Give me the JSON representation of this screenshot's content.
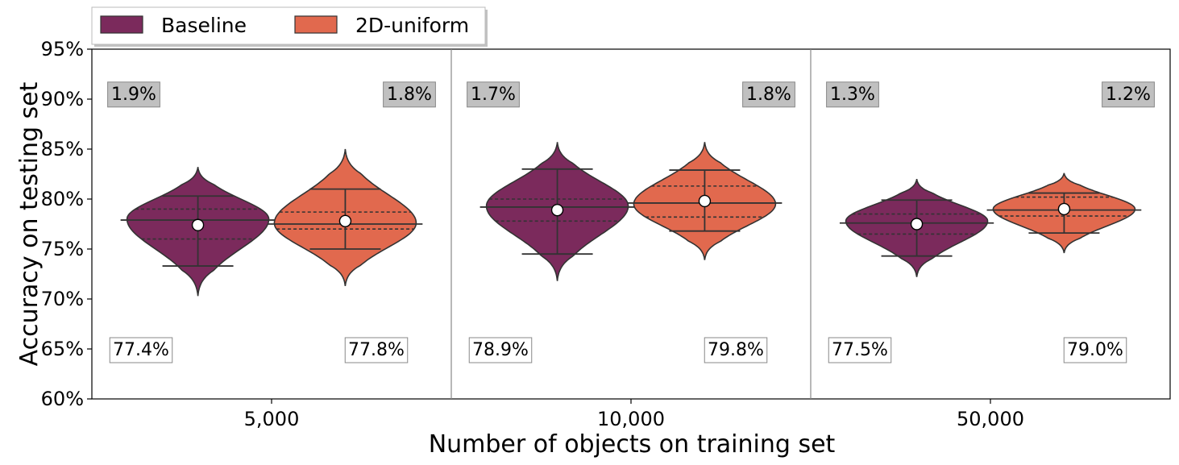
{
  "chart_data": {
    "type": "violin",
    "title": "",
    "xlabel": "Number of objects on training set",
    "ylabel": "Accuracy on testing set",
    "ylim": [
      60,
      95
    ],
    "yticks": [
      60,
      65,
      70,
      75,
      80,
      85,
      90,
      95
    ],
    "ytick_suffix": "%",
    "grid": false,
    "legend": {
      "placement": "top-left, above plot"
    },
    "categories": [
      "5,000",
      "10,000",
      "50,000"
    ],
    "series": [
      {
        "name": "Baseline",
        "color": "#7b2a5c",
        "groups": [
          {
            "mean": 77.4,
            "std_label": "1.9%",
            "mean_label": "77.4%",
            "min": 73.3,
            "max": 80.3,
            "whisker_low": 73.3,
            "whisker_high": 80.3,
            "q1": 76.0,
            "median": 77.9,
            "q3": 79.0,
            "kde_low": 70.3,
            "kde_high": 83.2,
            "peak": 78.0
          },
          {
            "mean": 78.9,
            "std_label": "1.7%",
            "mean_label": "78.9%",
            "min": 74.5,
            "max": 83.0,
            "whisker_low": 74.5,
            "whisker_high": 83.0,
            "q1": 77.8,
            "median": 79.2,
            "q3": 80.0,
            "kde_low": 71.8,
            "kde_high": 85.7,
            "peak": 79.3
          },
          {
            "mean": 77.5,
            "std_label": "1.3%",
            "mean_label": "77.5%",
            "min": 74.3,
            "max": 79.9,
            "whisker_low": 74.3,
            "whisker_high": 79.9,
            "q1": 76.5,
            "median": 77.6,
            "q3": 78.5,
            "kde_low": 72.2,
            "kde_high": 82.0,
            "peak": 77.8
          }
        ]
      },
      {
        "name": "2D-uniform",
        "color": "#e1694e",
        "groups": [
          {
            "mean": 77.8,
            "std_label": "1.8%",
            "mean_label": "77.8%",
            "min": 75.0,
            "max": 81.0,
            "whisker_low": 75.0,
            "whisker_high": 81.0,
            "q1": 77.0,
            "median": 77.5,
            "q3": 78.7,
            "kde_low": 71.3,
            "kde_high": 85.0,
            "peak": 77.6
          },
          {
            "mean": 79.8,
            "std_label": "1.8%",
            "mean_label": "79.8%",
            "min": 76.8,
            "max": 82.9,
            "whisker_low": 76.8,
            "whisker_high": 82.9,
            "q1": 78.2,
            "median": 79.6,
            "q3": 81.3,
            "kde_low": 73.9,
            "kde_high": 85.7,
            "peak": 79.5
          },
          {
            "mean": 79.0,
            "std_label": "1.2%",
            "mean_label": "79.0%",
            "min": 76.6,
            "max": 80.6,
            "whisker_low": 76.6,
            "whisker_high": 80.6,
            "q1": 78.3,
            "median": 78.9,
            "q3": 80.2,
            "kde_low": 74.6,
            "kde_high": 82.6,
            "peak": 79.0
          }
        ]
      }
    ]
  }
}
